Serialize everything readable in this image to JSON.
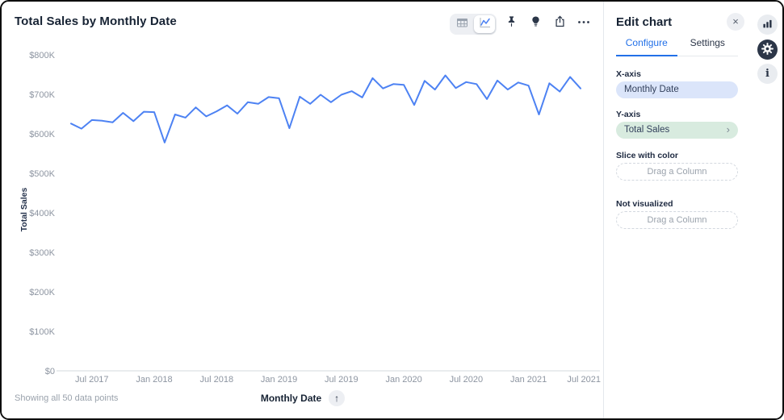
{
  "chart": {
    "title": "Total Sales by Monthly Date",
    "y_axis_title": "Total Sales",
    "x_axis_title": "Monthly Date",
    "footer_note": "Showing all 50 data points",
    "sort_icon": "↑"
  },
  "toolbar": {
    "icons": [
      "table-view-icon",
      "line-chart-view-icon",
      "pin-icon",
      "lightbulb-icon",
      "share-icon",
      "more-options-icon"
    ]
  },
  "edit_panel": {
    "title": "Edit chart",
    "close_icon": "×",
    "tabs": [
      {
        "label": "Configure",
        "active": true
      },
      {
        "label": "Settings",
        "active": false
      }
    ],
    "x_axis": {
      "label": "X-axis",
      "value": "Monthly Date",
      "pill_color": "#dbe5fa"
    },
    "y_axis": {
      "label": "Y-axis",
      "value": "Total Sales",
      "pill_color": "#d8ebdf",
      "chevron": "›"
    },
    "slice": {
      "label": "Slice with color",
      "placeholder": "Drag a Column"
    },
    "not_visualized": {
      "label": "Not visualized",
      "placeholder": "Drag a Column"
    }
  },
  "icon_rail": {
    "icons": [
      "bar-chart-icon",
      "gear-icon",
      "info-icon"
    ]
  },
  "chart_data": {
    "type": "line",
    "title": "Total Sales by Monthly Date",
    "xlabel": "Monthly Date",
    "ylabel": "Total Sales",
    "line_color": "#4d82f3",
    "grid": false,
    "legend": "none",
    "ylim": [
      0,
      800000
    ],
    "y_ticks": [
      "$800K",
      "$700K",
      "$600K",
      "$500K",
      "$400K",
      "$300K",
      "$200K",
      "$100K",
      "$0"
    ],
    "x_ticks": [
      {
        "label": "Jul 2017",
        "i": 2
      },
      {
        "label": "Jan 2018",
        "i": 8
      },
      {
        "label": "Jul 2018",
        "i": 14
      },
      {
        "label": "Jan 2019",
        "i": 20
      },
      {
        "label": "Jul 2019",
        "i": 26
      },
      {
        "label": "Jan 2020",
        "i": 32
      },
      {
        "label": "Jul 2020",
        "i": 38
      },
      {
        "label": "Jan 2021",
        "i": 44
      },
      {
        "label": "Jul 2021",
        "i": 50
      }
    ],
    "x": [
      "May 2017",
      "Jun 2017",
      "Jul 2017",
      "Aug 2017",
      "Sep 2017",
      "Oct 2017",
      "Nov 2017",
      "Dec 2017",
      "Jan 2018",
      "Feb 2018",
      "Mar 2018",
      "Apr 2018",
      "May 2018",
      "Jun 2018",
      "Jul 2018",
      "Aug 2018",
      "Sep 2018",
      "Oct 2018",
      "Nov 2018",
      "Dec 2018",
      "Jan 2019",
      "Feb 2019",
      "Mar 2019",
      "Apr 2019",
      "May 2019",
      "Jun 2019",
      "Jul 2019",
      "Aug 2019",
      "Sep 2019",
      "Oct 2019",
      "Nov 2019",
      "Dec 2019",
      "Jan 2020",
      "Feb 2020",
      "Mar 2020",
      "Apr 2020",
      "May 2020",
      "Jun 2020",
      "Jul 2020",
      "Aug 2020",
      "Sep 2020",
      "Oct 2020",
      "Nov 2020",
      "Dec 2020",
      "Jan 2021",
      "Feb 2021",
      "Mar 2021",
      "Apr 2021",
      "May 2021",
      "Jun 2021"
    ],
    "values": [
      626000,
      613000,
      635000,
      633000,
      629000,
      653000,
      632000,
      656000,
      655000,
      578000,
      649000,
      641000,
      667000,
      644000,
      657000,
      672000,
      651000,
      680000,
      676000,
      693000,
      690000,
      614000,
      694000,
      676000,
      699000,
      680000,
      699000,
      708000,
      692000,
      741000,
      715000,
      726000,
      724000,
      673000,
      734000,
      712000,
      748000,
      716000,
      731000,
      726000,
      688000,
      735000,
      712000,
      730000,
      722000,
      649000,
      728000,
      707000,
      744000,
      715000
    ]
  }
}
